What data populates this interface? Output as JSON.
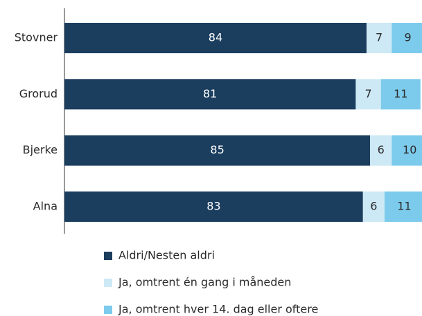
{
  "chart_data": {
    "type": "stacked-barh",
    "categories": [
      "Stovner",
      "Grorud",
      "Bjerke",
      "Alna"
    ],
    "series": [
      {
        "name": "Aldri/Nesten aldri",
        "color": "#1b3d5e",
        "values": [
          84,
          81,
          85,
          83
        ]
      },
      {
        "name": "Ja, omtrent én gang i måneden",
        "color": "#cde9f5",
        "values": [
          7,
          7,
          6,
          6
        ]
      },
      {
        "name": "Ja, omtrent hver 14. dag eller oftere",
        "color": "#7dcbec",
        "values": [
          9,
          11,
          10,
          11
        ]
      }
    ],
    "xlim": [
      0,
      100
    ]
  }
}
